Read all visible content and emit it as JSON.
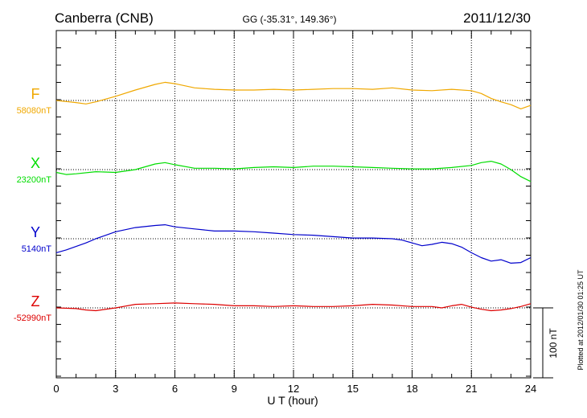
{
  "header": {
    "station": "Canberra (CNB)",
    "coords": "GG (-35.31°, 149.36°)",
    "date": "2011/12/30"
  },
  "plotted_note": "Plotted at 2012/01/30 01:25 UT",
  "chart_data": {
    "type": "line",
    "title": "Canberra (CNB)",
    "xlabel": "U T (hour)",
    "ylabel": "",
    "xlim": [
      0,
      24
    ],
    "xticks": [
      0,
      3,
      6,
      9,
      12,
      15,
      18,
      21,
      24
    ],
    "grid": true,
    "scale_bar": {
      "value": 100,
      "label": "100 nT"
    },
    "series": [
      {
        "name": "F",
        "baseline_label": "58080nT",
        "baseline": 58080,
        "color": "#f0a800",
        "x": [
          0,
          1,
          1.5,
          2,
          3,
          4,
          5,
          5.5,
          6,
          7,
          8,
          9,
          10,
          11,
          12,
          13,
          14,
          15,
          16,
          17,
          18,
          19,
          20,
          21,
          21.5,
          22,
          22.5,
          23,
          23.5,
          24
        ],
        "y": [
          58080,
          58077,
          58075,
          58078,
          58086,
          58095,
          58103,
          58106,
          58104,
          58098,
          58096,
          58095,
          58095,
          58096,
          58095,
          58096,
          58097,
          58097,
          58096,
          58098,
          58095,
          58094,
          58096,
          58094,
          58090,
          58083,
          58078,
          58074,
          58068,
          58073
        ]
      },
      {
        "name": "X",
        "baseline_label": "23200nT",
        "baseline": 23200,
        "color": "#00dd00",
        "x": [
          0,
          0.5,
          1,
          2,
          3,
          4,
          5,
          5.5,
          6,
          7,
          8,
          9,
          10,
          11,
          12,
          13,
          14,
          15,
          16,
          17,
          18,
          19,
          20,
          21,
          21.5,
          22,
          22.5,
          23,
          23.5,
          24
        ],
        "y": [
          23196,
          23193,
          23194,
          23197,
          23196,
          23200,
          23208,
          23210,
          23207,
          23202,
          23202,
          23201,
          23203,
          23204,
          23203,
          23205,
          23205,
          23204,
          23203,
          23202,
          23201,
          23201,
          23203,
          23206,
          23210,
          23212,
          23208,
          23200,
          23190,
          23183
        ]
      },
      {
        "name": "Y",
        "baseline_label": "5140nT",
        "baseline": 5140,
        "color": "#0000cc",
        "x": [
          0,
          0.5,
          1,
          1.5,
          2,
          3,
          4,
          5,
          5.5,
          6,
          7,
          8,
          9,
          10,
          11,
          12,
          13,
          14,
          15,
          16,
          17,
          17.5,
          18,
          18.5,
          19,
          19.5,
          20,
          20.5,
          21,
          21.5,
          22,
          22.5,
          23,
          23.5,
          24
        ],
        "y": [
          5120,
          5124,
          5129,
          5134,
          5140,
          5150,
          5156,
          5159,
          5160,
          5157,
          5154,
          5151,
          5151,
          5150,
          5148,
          5146,
          5145,
          5143,
          5141,
          5141,
          5140,
          5138,
          5134,
          5130,
          5132,
          5135,
          5133,
          5128,
          5120,
          5113,
          5108,
          5110,
          5105,
          5106,
          5113
        ]
      },
      {
        "name": "Z",
        "baseline_label": "-52990nT",
        "baseline": -52990,
        "color": "#dd0000",
        "x": [
          0,
          1,
          1.5,
          2,
          3,
          4,
          5,
          6,
          7,
          8,
          9,
          10,
          11,
          12,
          13,
          14,
          15,
          16,
          17,
          18,
          19,
          19.5,
          20,
          20.5,
          21,
          21.5,
          22,
          22.5,
          23,
          23.5,
          24
        ],
        "y": [
          -52990,
          -52991,
          -52993,
          -52994,
          -52990,
          -52985,
          -52984,
          -52983,
          -52984,
          -52985,
          -52987,
          -52987,
          -52988,
          -52987,
          -52988,
          -52988,
          -52987,
          -52985,
          -52986,
          -52988,
          -52988,
          -52990,
          -52987,
          -52985,
          -52989,
          -52992,
          -52994,
          -52993,
          -52991,
          -52988,
          -52984
        ]
      }
    ]
  }
}
